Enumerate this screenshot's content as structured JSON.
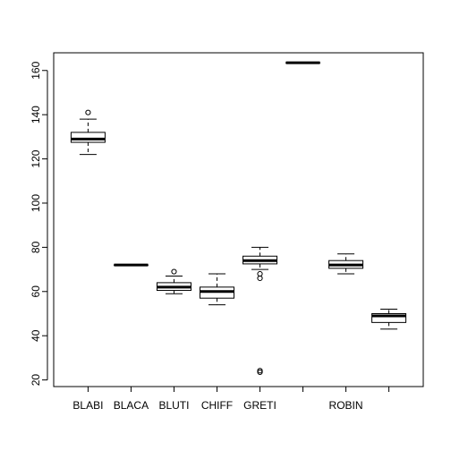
{
  "chart_data": {
    "type": "boxplot",
    "title": "",
    "xlabel": "",
    "ylabel": "",
    "ylim": [
      17,
      168
    ],
    "yticks": [
      20,
      40,
      60,
      80,
      100,
      120,
      140,
      160
    ],
    "categories": [
      "BLABI",
      "BLACA",
      "BLUTI",
      "CHIFF",
      "GRETI",
      "",
      "ROBIN",
      ""
    ],
    "boxes": [
      {
        "category": "BLABI",
        "min": 122,
        "q1": 127.5,
        "median": 129,
        "q3": 132,
        "max": 138,
        "outliers": [
          141
        ]
      },
      {
        "category": "BLACA",
        "min": 72,
        "q1": 72,
        "median": 72,
        "q3": 72,
        "max": 72,
        "outliers": []
      },
      {
        "category": "BLUTI",
        "min": 59,
        "q1": 60.5,
        "median": 62,
        "q3": 64,
        "max": 67,
        "outliers": [
          69
        ]
      },
      {
        "category": "CHIFF",
        "min": 54,
        "q1": 57,
        "median": 60,
        "q3": 62,
        "max": 68,
        "outliers": []
      },
      {
        "category": "GRETI",
        "min": 70,
        "q1": 72.5,
        "median": 74,
        "q3": 76,
        "max": 80,
        "outliers": [
          66,
          68,
          23.5,
          24.2
        ]
      },
      {
        "category": "",
        "min": 163.5,
        "q1": 163.5,
        "median": 163.5,
        "q3": 163.5,
        "max": 163.5,
        "outliers": []
      },
      {
        "category": "ROBIN",
        "min": 68,
        "q1": 70.5,
        "median": 72,
        "q3": 74,
        "max": 77,
        "outliers": []
      },
      {
        "category": "",
        "min": 43,
        "q1": 46,
        "median": 49,
        "q3": 50,
        "max": 52,
        "outliers": []
      }
    ]
  }
}
